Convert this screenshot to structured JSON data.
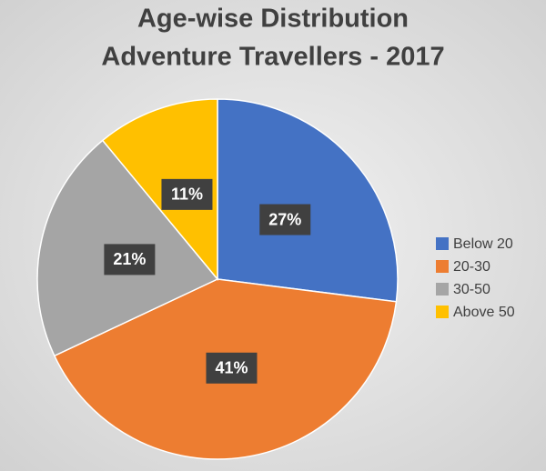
{
  "chart_data": {
    "type": "pie",
    "title": [
      "Age-wise Distribution",
      "Adventure Travellers - 2017"
    ],
    "categories": [
      "Below 20",
      "20-30",
      "30-50",
      "Above 50"
    ],
    "values": [
      27,
      41,
      21,
      11
    ],
    "value_labels": [
      "27%",
      "41%",
      "21%",
      "11%"
    ],
    "colors": [
      "#4472c4",
      "#ed7d31",
      "#a5a5a5",
      "#ffc000"
    ],
    "legend": "right"
  }
}
